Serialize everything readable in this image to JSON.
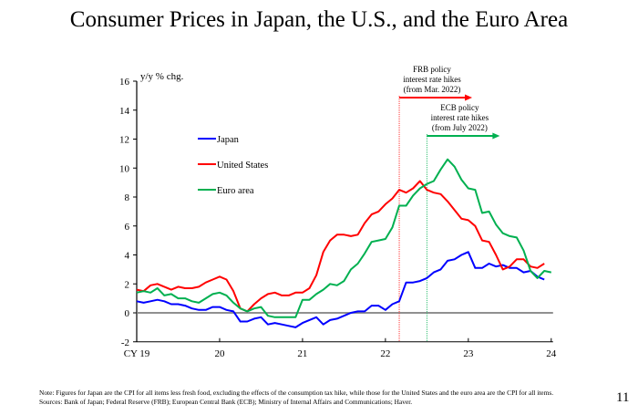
{
  "page_number": "11",
  "notes": {
    "note": "Note: Figures for Japan are the CPI for all items less fresh food, excluding the effects of the consumption tax hike, while those for the United States and the euro area are the CPI for all items.",
    "sources": "Sources: Bank of Japan; Federal Reserve (FRB); European Central Bank (ECB); Ministry of Internal Affairs and Communications; Haver."
  },
  "chart_data": {
    "type": "line",
    "title": "Consumer Prices in Japan, the U.S., and the Euro Area",
    "xlabel": "",
    "ylabel": "y/y % chg.",
    "ylim": [
      -2,
      16
    ],
    "yticks": [
      -2,
      0,
      2,
      4,
      6,
      8,
      10,
      12,
      14,
      16
    ],
    "xlim": [
      "2019-01",
      "2024-01"
    ],
    "xtick_labels": [
      "CY 19",
      "20",
      "21",
      "22",
      "23",
      "24"
    ],
    "x_start": "2019-01",
    "x_frequency": "monthly",
    "grid": false,
    "legend_position": "left-center",
    "series": [
      {
        "name": "Japan",
        "color": "#0000ff",
        "values": [
          0.8,
          0.7,
          0.8,
          0.9,
          0.8,
          0.6,
          0.6,
          0.5,
          0.3,
          0.2,
          0.2,
          0.4,
          0.4,
          0.2,
          0.1,
          -0.6,
          -0.6,
          -0.4,
          -0.3,
          -0.8,
          -0.7,
          -0.8,
          -0.9,
          -1.0,
          -0.7,
          -0.5,
          -0.3,
          -0.8,
          -0.5,
          -0.4,
          -0.2,
          0.0,
          0.1,
          0.1,
          0.5,
          0.5,
          0.2,
          0.6,
          0.8,
          2.1,
          2.1,
          2.2,
          2.4,
          2.8,
          3.0,
          3.6,
          3.7,
          4.0,
          4.2,
          3.1,
          3.1,
          3.4,
          3.2,
          3.3,
          3.1,
          3.1,
          2.8,
          2.9,
          2.5,
          2.3
        ]
      },
      {
        "name": "United States",
        "color": "#ff0000",
        "values": [
          1.6,
          1.5,
          1.9,
          2.0,
          1.8,
          1.6,
          1.8,
          1.7,
          1.7,
          1.8,
          2.1,
          2.3,
          2.5,
          2.3,
          1.5,
          0.3,
          0.1,
          0.6,
          1.0,
          1.3,
          1.4,
          1.2,
          1.2,
          1.4,
          1.4,
          1.7,
          2.6,
          4.2,
          5.0,
          5.4,
          5.4,
          5.3,
          5.4,
          6.2,
          6.8,
          7.0,
          7.5,
          7.9,
          8.5,
          8.3,
          8.6,
          9.1,
          8.5,
          8.3,
          8.2,
          7.7,
          7.1,
          6.5,
          6.4,
          6.0,
          5.0,
          4.9,
          4.0,
          3.0,
          3.2,
          3.7,
          3.7,
          3.2,
          3.1,
          3.4
        ]
      },
      {
        "name": "Euro area",
        "color": "#00b050",
        "values": [
          1.4,
          1.5,
          1.4,
          1.7,
          1.2,
          1.3,
          1.0,
          1.0,
          0.8,
          0.7,
          1.0,
          1.3,
          1.4,
          1.2,
          0.7,
          0.3,
          0.1,
          0.3,
          0.4,
          -0.2,
          -0.3,
          -0.3,
          -0.3,
          -0.3,
          0.9,
          0.9,
          1.3,
          1.6,
          2.0,
          1.9,
          2.2,
          3.0,
          3.4,
          4.1,
          4.9,
          5.0,
          5.1,
          5.9,
          7.4,
          7.4,
          8.1,
          8.6,
          8.9,
          9.1,
          9.9,
          10.6,
          10.1,
          9.2,
          8.6,
          8.5,
          6.9,
          7.0,
          6.1,
          5.5,
          5.3,
          5.2,
          4.3,
          2.9,
          2.4,
          2.9,
          2.8
        ]
      }
    ],
    "annotations": [
      {
        "lines": [
          "FRB policy",
          "interest rate hikes",
          "(from Mar. 2022)"
        ],
        "start": "2022-03",
        "color": "#ff0000"
      },
      {
        "lines": [
          "ECB policy",
          "interest rate hikes",
          "(from July 2022)"
        ],
        "start": "2022-07",
        "color": "#00b050"
      }
    ]
  }
}
